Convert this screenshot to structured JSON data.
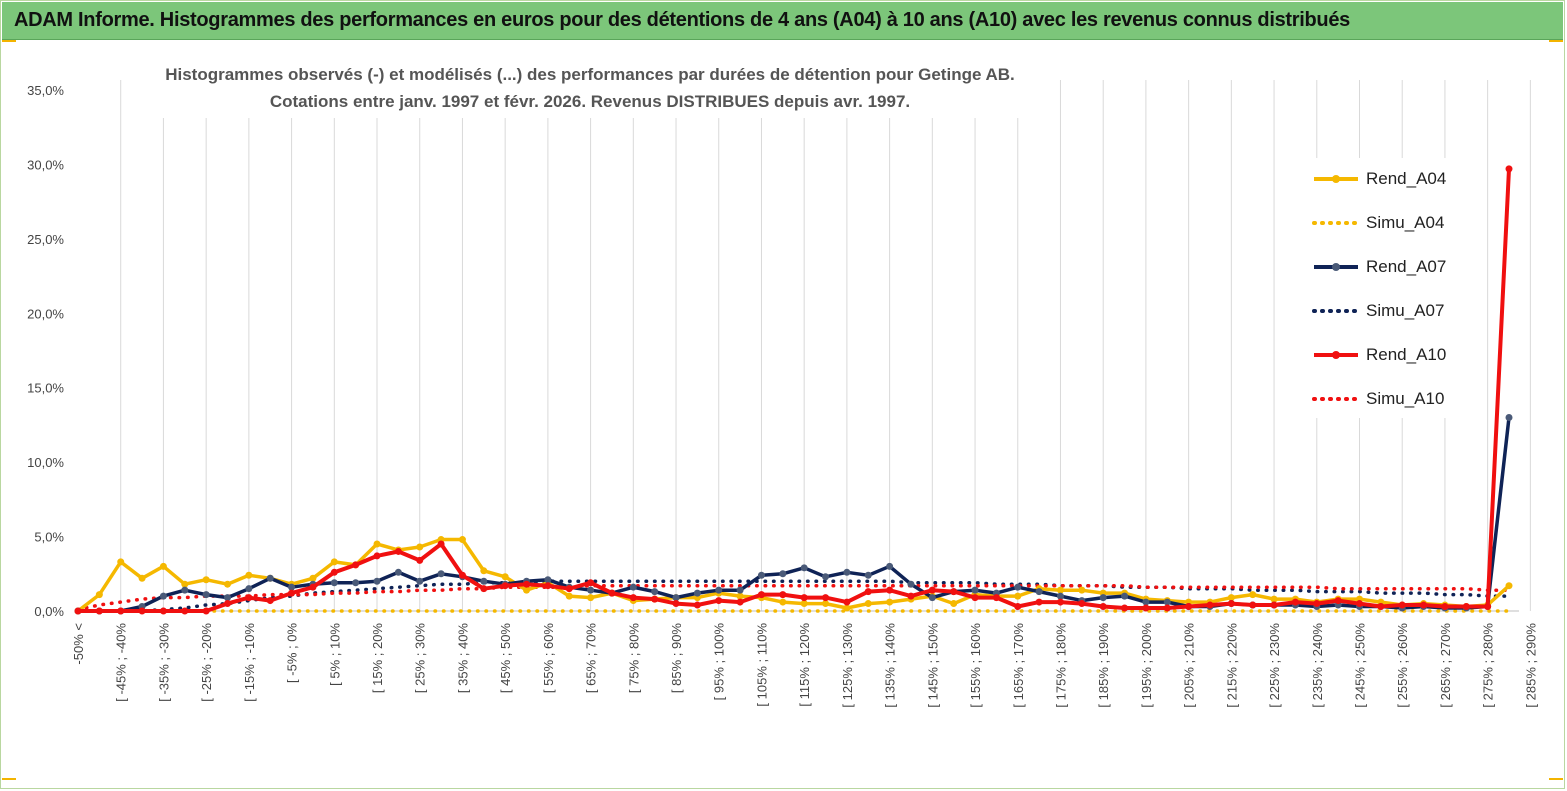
{
  "banner": {
    "title": "ADAM Informe. Histogrammes des performances en euros pour des détentions de 4 ans (A04) à 10 ans (A10) avec les revenus connus distribués"
  },
  "colors": {
    "banner_bg": "#7cc67a",
    "rend_a04": "#f5b800",
    "rend_a07": "#0f2356",
    "rend_a10": "#f01010",
    "a07_marker": "#4a5a78"
  },
  "chart_data": {
    "type": "line",
    "title": "Histogrammes observés (-) et modélisés (...) des performances par durées de détention pour Getinge AB.",
    "subtitle": "Cotations entre janv. 1997 et févr. 2026. Revenus DISTRIBUES depuis avr. 1997.",
    "xlabel": "",
    "ylabel": "",
    "ylim": [
      0,
      35
    ],
    "grid": "vertical",
    "legend_position": "right",
    "y_ticks": [
      "0,0%",
      "5,0%",
      "10,0%",
      "15,0%",
      "20,0%",
      "25,0%",
      "30,0%",
      "35,0%"
    ],
    "x_tick_labels": [
      "-50% <",
      "[ -45% ; -40%",
      "[ -35% ; -30%",
      "[ -25% ; -20%",
      "[ -15% ; -10%",
      "[ -5% ; 0%",
      "[ 5% ; 10%",
      "[ 15% ; 20%",
      "[ 25% ; 30%",
      "[ 35% ; 40%",
      "[ 45% ; 50%",
      "[ 55% ; 60%",
      "[ 65% ; 70%",
      "[ 75% ; 80%",
      "[ 85% ; 90%",
      "[ 95% ; 100%",
      "[ 105% ; 110%",
      "[ 115% ; 120%",
      "[ 125% ; 130%",
      "[ 135% ; 140%",
      "[ 145% ; 150%",
      "[ 155% ; 160%",
      "[ 165% ; 170%",
      "[ 175% ; 180%",
      "[ 185% ; 190%",
      "[ 195% ; 200%",
      "[ 205% ; 210%",
      "[ 215% ; 220%",
      "[ 225% ; 230%",
      "[ 235% ; 240%",
      "[ 245% ; 250%",
      "[ 255% ; 260%",
      "[ 265% ; 270%",
      "[ 275% ; 280%",
      "[ 285% ; 290%"
    ],
    "series": [
      {
        "name": "Rend_A04",
        "style": "solid",
        "color": "#f5b800",
        "values": [
          0.0,
          1.1,
          3.3,
          2.2,
          3.0,
          1.8,
          2.1,
          1.8,
          2.4,
          2.2,
          1.8,
          2.2,
          3.3,
          3.1,
          4.5,
          4.1,
          4.3,
          4.8,
          4.8,
          2.7,
          2.3,
          1.4,
          1.9,
          1.0,
          0.9,
          1.2,
          0.7,
          0.8,
          0.9,
          0.9,
          1.2,
          1.0,
          0.9,
          0.6,
          0.5,
          0.5,
          0.2,
          0.5,
          0.6,
          0.8,
          1.0,
          0.5,
          1.1,
          1.0,
          1.0,
          1.5,
          1.4,
          1.4,
          1.2,
          1.2,
          0.8,
          0.7,
          0.6,
          0.6,
          0.9,
          1.1,
          0.8,
          0.8,
          0.6,
          0.8,
          0.8,
          0.6,
          0.4,
          0.5,
          0.4,
          0.3,
          0.4,
          1.7
        ]
      },
      {
        "name": "Simu_A04",
        "style": "dotted",
        "color": "#f5b800",
        "values": [
          0.0,
          0.0,
          0.0,
          0.0,
          0.0,
          0.0,
          0.0,
          0.0,
          0.0,
          0.0,
          0.0,
          0.0,
          0.0,
          0.0,
          0.0,
          0.0,
          0.0,
          0.0,
          0.0,
          0.0,
          0.0,
          0.0,
          0.0,
          0.0,
          0.0,
          0.0,
          0.0,
          0.0,
          0.0,
          0.0,
          0.0,
          0.0,
          0.0,
          0.0,
          0.0,
          0.0,
          0.0,
          0.0,
          0.0,
          0.0,
          0.0,
          0.0,
          0.0,
          0.0,
          0.0,
          0.0,
          0.0,
          0.0,
          0.0,
          0.0,
          0.0,
          0.0,
          0.0,
          0.0,
          0.0,
          0.0,
          0.0,
          0.0,
          0.0,
          0.0,
          0.0,
          0.0,
          0.0,
          0.0,
          0.0,
          0.0,
          0.0,
          0.0
        ]
      },
      {
        "name": "Rend_A07",
        "style": "solid",
        "color": "#0f2356",
        "values": [
          0.0,
          0.0,
          0.0,
          0.3,
          1.0,
          1.4,
          1.1,
          0.9,
          1.5,
          2.2,
          1.6,
          1.8,
          1.9,
          1.9,
          2.0,
          2.6,
          2.0,
          2.5,
          2.3,
          2.0,
          1.8,
          2.0,
          2.1,
          1.6,
          1.4,
          1.2,
          1.6,
          1.3,
          0.9,
          1.2,
          1.4,
          1.4,
          2.4,
          2.5,
          2.9,
          2.3,
          2.6,
          2.4,
          3.0,
          1.8,
          0.9,
          1.3,
          1.4,
          1.2,
          1.6,
          1.3,
          1.0,
          0.7,
          0.9,
          1.0,
          0.6,
          0.6,
          0.3,
          0.3,
          0.5,
          0.4,
          0.4,
          0.4,
          0.3,
          0.4,
          0.3,
          0.3,
          0.2,
          0.3,
          0.2,
          0.2,
          0.3,
          13.0
        ]
      },
      {
        "name": "Simu_A07",
        "style": "dotted",
        "color": "#0f2356",
        "values": [
          0.0,
          0.0,
          0.0,
          0.0,
          0.1,
          0.2,
          0.4,
          0.5,
          0.7,
          0.9,
          1.0,
          1.2,
          1.3,
          1.4,
          1.5,
          1.6,
          1.7,
          1.8,
          1.8,
          1.9,
          1.9,
          1.9,
          2.0,
          2.0,
          2.0,
          2.0,
          2.0,
          2.0,
          2.0,
          2.0,
          2.0,
          2.0,
          2.0,
          2.0,
          2.0,
          2.0,
          2.0,
          2.0,
          2.0,
          1.9,
          1.9,
          1.9,
          1.9,
          1.8,
          1.8,
          1.8,
          1.7,
          1.7,
          1.7,
          1.6,
          1.6,
          1.6,
          1.5,
          1.5,
          1.5,
          1.4,
          1.4,
          1.4,
          1.3,
          1.3,
          1.3,
          1.2,
          1.2,
          1.2,
          1.1,
          1.1,
          1.0,
          1.0
        ]
      },
      {
        "name": "Rend_A10",
        "style": "solid",
        "color": "#f01010",
        "values": [
          0.0,
          0.0,
          0.0,
          0.0,
          0.0,
          0.0,
          0.0,
          0.5,
          0.9,
          0.7,
          1.2,
          1.6,
          2.6,
          3.1,
          3.7,
          4.0,
          3.4,
          4.5,
          2.4,
          1.5,
          1.7,
          1.8,
          1.7,
          1.5,
          1.9,
          1.2,
          0.9,
          0.8,
          0.5,
          0.4,
          0.7,
          0.6,
          1.1,
          1.1,
          0.9,
          0.9,
          0.6,
          1.3,
          1.4,
          1.0,
          1.4,
          1.3,
          0.9,
          0.9,
          0.3,
          0.6,
          0.6,
          0.5,
          0.3,
          0.2,
          0.2,
          0.2,
          0.3,
          0.4,
          0.5,
          0.4,
          0.4,
          0.6,
          0.5,
          0.7,
          0.5,
          0.3,
          0.4,
          0.4,
          0.3,
          0.3,
          0.3,
          29.7
        ]
      },
      {
        "name": "Simu_A10",
        "style": "dotted",
        "color": "#f01010",
        "values": [
          0.1,
          0.4,
          0.6,
          0.8,
          0.9,
          0.9,
          1.0,
          1.0,
          1.0,
          1.1,
          1.1,
          1.1,
          1.2,
          1.2,
          1.3,
          1.3,
          1.4,
          1.4,
          1.5,
          1.5,
          1.6,
          1.6,
          1.6,
          1.6,
          1.7,
          1.7,
          1.7,
          1.7,
          1.7,
          1.7,
          1.7,
          1.7,
          1.7,
          1.7,
          1.7,
          1.7,
          1.7,
          1.7,
          1.7,
          1.7,
          1.7,
          1.7,
          1.7,
          1.7,
          1.7,
          1.7,
          1.7,
          1.7,
          1.7,
          1.7,
          1.6,
          1.6,
          1.6,
          1.6,
          1.6,
          1.6,
          1.6,
          1.6,
          1.6,
          1.5,
          1.5,
          1.5,
          1.5,
          1.5,
          1.5,
          1.5,
          1.4,
          1.4
        ]
      }
    ]
  }
}
